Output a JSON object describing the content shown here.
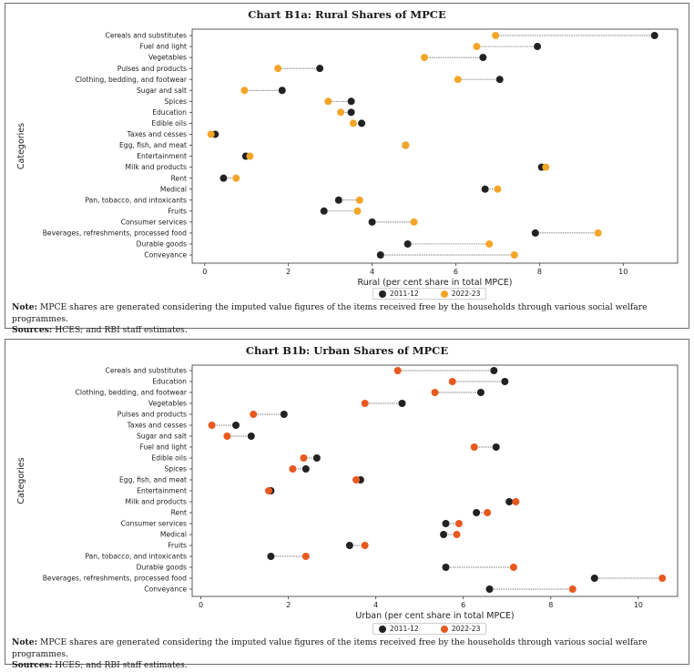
{
  "legend": {
    "series1": "2011-12",
    "series2": "2022-23"
  },
  "note": {
    "label": "Note:",
    "text": "MPCE shares are generated considering the imputed value figures of the items received free by the households through various social welfare programmes."
  },
  "sources": {
    "label": "Sources:",
    "text": "HCES; and RBI staff estimates."
  },
  "colors": {
    "y2011": "#222222",
    "rural2022": "#f4a528",
    "urban2022": "#e8591f"
  },
  "chart_data": [
    {
      "type": "dumbbell",
      "title": "Chart B1a:  Rural Shares of MPCE",
      "xlabel": "Rural (per cent share in total MPCE)",
      "ylabel": "Categories",
      "xlim": [
        -0.3,
        11.3
      ],
      "xticks": [
        0,
        2,
        4,
        6,
        8,
        10
      ],
      "categories": [
        "Cereals and substitutes",
        "Fuel and light",
        "Vegetables",
        "Pulses and products",
        "Clothing, bedding, and footwear",
        "Sugar and salt",
        "Spices",
        "Education",
        "Edible oils",
        "Taxes and cesses",
        "Egg, fish, and meat",
        "Entertainment",
        "Milk and products",
        "Rent",
        "Medical",
        "Pan, tobacco, and intoxicants",
        "Fruits",
        "Consumer services",
        "Beverages, refreshments, processed food",
        "Durable goods",
        "Conveyance"
      ],
      "series": [
        {
          "name": "2011-12",
          "values": [
            10.75,
            7.95,
            6.65,
            2.75,
            7.05,
            1.85,
            3.5,
            3.5,
            3.75,
            0.25,
            4.8,
            0.98,
            8.05,
            0.45,
            6.7,
            3.2,
            2.85,
            4.0,
            7.9,
            4.85,
            4.2
          ]
        },
        {
          "name": "2022-23",
          "values": [
            6.95,
            6.5,
            5.25,
            1.75,
            6.05,
            0.95,
            2.95,
            3.25,
            3.55,
            0.15,
            4.8,
            1.08,
            8.15,
            0.75,
            7.0,
            3.7,
            3.65,
            5.0,
            9.4,
            6.8,
            7.4
          ]
        }
      ]
    },
    {
      "type": "dumbbell",
      "title": "Chart B1b:  Urban Shares of MPCE",
      "xlabel": "Urban (per cent share in total MPCE)",
      "ylabel": "Categories",
      "xlim": [
        -0.2,
        10.9
      ],
      "xticks": [
        0,
        2,
        4,
        6,
        8,
        10
      ],
      "categories": [
        "Cereals and substitutes",
        "Education",
        "Clothing, bedding, and footwear",
        "Vegetables",
        "Pulses and products",
        "Taxes and cesses",
        "Sugar and salt",
        "Fuel and light",
        "Edible oils",
        "Spices",
        "Egg, fish, and meat",
        "Entertainment",
        "Milk and products",
        "Rent",
        "Consumer services",
        "Medical",
        "Fruits",
        "Pan, tobacco, and intoxicants",
        "Durable goods",
        "Beverages, refreshments, processed food",
        "Conveyance"
      ],
      "series": [
        {
          "name": "2011-12",
          "values": [
            6.7,
            6.95,
            6.4,
            4.6,
            1.9,
            0.8,
            1.15,
            6.75,
            2.65,
            2.4,
            3.65,
            1.6,
            7.05,
            6.3,
            5.6,
            5.55,
            3.4,
            1.6,
            5.6,
            9.0,
            6.6
          ]
        },
        {
          "name": "2022-23",
          "values": [
            4.5,
            5.75,
            5.35,
            3.75,
            1.2,
            0.25,
            0.6,
            6.25,
            2.35,
            2.1,
            3.55,
            1.55,
            7.2,
            6.55,
            5.9,
            5.85,
            3.75,
            2.4,
            7.15,
            10.55,
            8.5
          ]
        }
      ]
    }
  ]
}
